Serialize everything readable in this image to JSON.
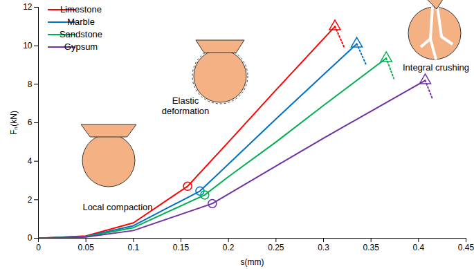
{
  "chart_data": {
    "type": "line",
    "x_label": "s(mm)",
    "y_label": "Fₙ(kN)",
    "xlim": [
      0,
      0.45
    ],
    "xticks": [
      0,
      0.05,
      0.1,
      0.15,
      0.2,
      0.25,
      0.3,
      0.35,
      0.4,
      0.45
    ],
    "ylim": [
      0,
      12
    ],
    "yticks": [
      0,
      2,
      4,
      6,
      8,
      10,
      12
    ],
    "grid": false,
    "legend": "top-left",
    "annotations": [
      "Local compaction",
      "Elastic deformation",
      "Integral crushing"
    ],
    "series": [
      {
        "name": "Limestone",
        "color": "#ff0000",
        "x": [
          0,
          0.05,
          0.1,
          0.157,
          0.2,
          0.25,
          0.312
        ],
        "values": [
          0,
          0.12,
          0.8,
          2.7,
          5.0,
          7.7,
          11.0
        ],
        "transition": {
          "x": 0.157,
          "y": 2.7
        },
        "peak": {
          "x": 0.312,
          "y": 11.0
        },
        "post_peak": {
          "x": [
            0.312,
            0.322
          ],
          "values": [
            11.0,
            9.9
          ]
        }
      },
      {
        "name": "Marble",
        "color": "#0070c0",
        "x": [
          0,
          0.05,
          0.1,
          0.17,
          0.2,
          0.25,
          0.3,
          0.335
        ],
        "values": [
          0,
          0.1,
          0.65,
          2.45,
          3.85,
          6.2,
          8.5,
          10.1
        ],
        "transition": {
          "x": 0.17,
          "y": 2.45
        },
        "peak": {
          "x": 0.335,
          "y": 10.1
        },
        "post_peak": {
          "x": [
            0.335,
            0.345
          ],
          "values": [
            10.1,
            9.0
          ]
        }
      },
      {
        "name": "Sandstone",
        "color": "#00b050",
        "x": [
          0,
          0.05,
          0.1,
          0.175,
          0.2,
          0.25,
          0.3,
          0.366
        ],
        "values": [
          0,
          0.08,
          0.55,
          2.25,
          3.2,
          5.0,
          6.9,
          9.35
        ],
        "transition": {
          "x": 0.175,
          "y": 2.25
        },
        "peak": {
          "x": 0.366,
          "y": 9.35
        },
        "post_peak": {
          "x": [
            0.366,
            0.374
          ],
          "values": [
            9.35,
            8.3
          ]
        }
      },
      {
        "name": "Gypsum",
        "color": "#7030a0",
        "x": [
          0,
          0.05,
          0.1,
          0.183,
          0.25,
          0.3,
          0.35,
          0.407
        ],
        "values": [
          0,
          0.06,
          0.4,
          1.8,
          3.75,
          5.2,
          6.6,
          8.2
        ],
        "transition": {
          "x": 0.183,
          "y": 1.8
        },
        "peak": {
          "x": 0.407,
          "y": 8.2
        },
        "post_peak": {
          "x": [
            0.407,
            0.415
          ],
          "values": [
            8.2,
            7.2
          ]
        }
      }
    ]
  }
}
